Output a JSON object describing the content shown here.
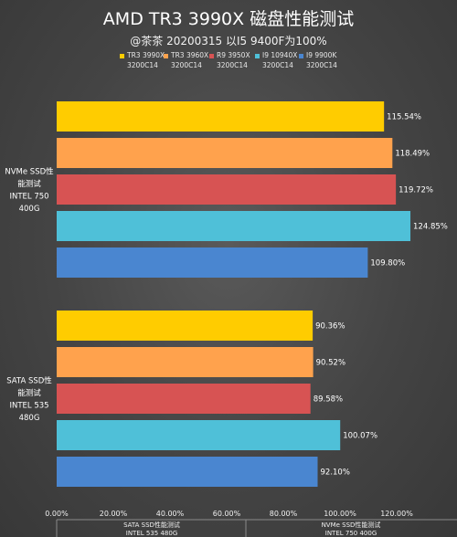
{
  "chart_data": {
    "type": "bar",
    "orientation": "horizontal",
    "title": "AMD TR3 3990X 磁盘性能测试",
    "subtitle": "@茶茶 20200315 以I5 9400F为100%",
    "groups": [
      {
        "label_lines": [
          "NVMe SSD性",
          "能测试",
          "INTEL 750",
          "400G"
        ]
      },
      {
        "label_lines": [
          "SATA SSD性",
          "能测试",
          "INTEL 535",
          "480G"
        ]
      }
    ],
    "series": [
      {
        "name": "TR3 3990X",
        "sub": "3200C14",
        "color": "#ffcc00",
        "values": [
          115.54,
          90.36
        ],
        "labels": [
          "115.54%",
          "90.36%"
        ]
      },
      {
        "name": "TR3 3960X",
        "sub": "3200C14",
        "color": "#ffa24d",
        "values": [
          118.49,
          90.52
        ],
        "labels": [
          "118.49%",
          "90.52%"
        ]
      },
      {
        "name": "R9 3950X",
        "sub": "3200C14",
        "color": "#d75353",
        "values": [
          119.72,
          89.58
        ],
        "labels": [
          "119.72%",
          "89.58%"
        ]
      },
      {
        "name": "I9 10940X",
        "sub": "3200C14",
        "color": "#4fc0d8",
        "values": [
          124.85,
          100.07
        ],
        "labels": [
          "124.85%",
          "100.07%"
        ]
      },
      {
        "name": "I9 9900K",
        "sub": "3200C14",
        "color": "#4a86d0",
        "values": [
          109.8,
          92.1
        ],
        "labels": [
          "109.80%",
          "92.10%"
        ]
      }
    ],
    "xlim": [
      0,
      130
    ],
    "xticks": [
      0,
      20,
      40,
      60,
      80,
      100,
      120
    ],
    "xtick_labels": [
      "0.00%",
      "20.00%",
      "40.00%",
      "60.00%",
      "80.00%",
      "100.00%",
      "120.00%"
    ],
    "table": [
      {
        "lines": [
          "SATA SSD性能测试",
          "INTEL 535 480G"
        ]
      },
      {
        "lines": [
          "NVMe SSD性能测试",
          "INTEL 750 400G"
        ]
      }
    ],
    "grid": false,
    "legend_position": "top"
  }
}
